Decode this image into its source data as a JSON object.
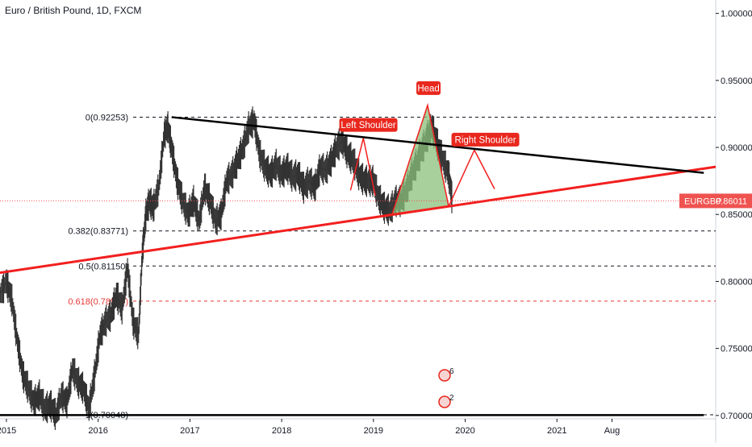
{
  "chart_data": {
    "type": "line",
    "title": "Euro / British Pound, 1D, FXCM",
    "symbol": "EURGBP",
    "last_price": "0.86011",
    "x_ticks": [
      "2015",
      "2016",
      "2017",
      "2018",
      "2019",
      "2020",
      "2021",
      "Aug"
    ],
    "y_ticks": [
      "1.00000",
      "0.95000",
      "0.90000",
      "0.85000",
      "0.80000",
      "0.75000",
      "0.70000"
    ],
    "ylim": [
      0.6975,
      1.01
    ],
    "xlim": [
      2014.93,
      2022.73
    ],
    "grid": false,
    "series": [
      {
        "values_x": [
          2014.93,
          2015.0,
          2015.06,
          2015.12,
          2015.18,
          2015.24,
          2015.3,
          2015.36,
          2015.42,
          2015.48,
          2015.54,
          2015.6,
          2015.66,
          2015.72,
          2015.78,
          2015.84,
          2015.9,
          2015.96,
          2016.02,
          2016.08,
          2016.14,
          2016.2,
          2016.26,
          2016.32,
          2016.38,
          2016.44,
          2016.48,
          2016.52,
          2016.56,
          2016.6,
          2016.66,
          2016.72,
          2016.76,
          2016.8,
          2016.86,
          2016.92,
          2016.98,
          2017.04,
          2017.1,
          2017.16,
          2017.22,
          2017.28,
          2017.34,
          2017.4,
          2017.46,
          2017.52,
          2017.58,
          2017.64,
          2017.7,
          2017.76,
          2017.82,
          2017.88,
          2017.94,
          2018.0,
          2018.06,
          2018.12,
          2018.18,
          2018.24,
          2018.3,
          2018.36,
          2018.42,
          2018.48,
          2018.54,
          2018.6,
          2018.66,
          2018.72,
          2018.78,
          2018.84,
          2018.9,
          2018.96,
          2019.0,
          2019.06,
          2019.12,
          2019.18,
          2019.24,
          2019.3,
          2019.36,
          2019.42,
          2019.48,
          2019.54,
          2019.6,
          2019.64,
          2019.7,
          2019.76,
          2019.82,
          2019.86
        ],
        "values_y": [
          0.79,
          0.8,
          0.786,
          0.755,
          0.73,
          0.72,
          0.71,
          0.715,
          0.705,
          0.708,
          0.7,
          0.715,
          0.71,
          0.735,
          0.725,
          0.72,
          0.705,
          0.73,
          0.76,
          0.77,
          0.775,
          0.79,
          0.78,
          0.81,
          0.77,
          0.76,
          0.82,
          0.85,
          0.86,
          0.855,
          0.87,
          0.91,
          0.915,
          0.9,
          0.875,
          0.86,
          0.85,
          0.86,
          0.845,
          0.87,
          0.86,
          0.845,
          0.85,
          0.875,
          0.88,
          0.89,
          0.9,
          0.915,
          0.92,
          0.895,
          0.885,
          0.88,
          0.887,
          0.88,
          0.885,
          0.878,
          0.88,
          0.87,
          0.875,
          0.87,
          0.885,
          0.883,
          0.89,
          0.9,
          0.905,
          0.895,
          0.89,
          0.88,
          0.875,
          0.875,
          0.875,
          0.862,
          0.855,
          0.853,
          0.86,
          0.86,
          0.868,
          0.88,
          0.89,
          0.9,
          0.91,
          0.915,
          0.902,
          0.89,
          0.88,
          0.86
        ]
      }
    ],
    "fib_levels": [
      {
        "label": "0(0.92253)",
        "value": 0.92253,
        "color": "#131722"
      },
      {
        "label": "0.382(0.83771)",
        "value": 0.83771,
        "color": "#131722"
      },
      {
        "label": "0.5(0.81150)",
        "value": 0.8115,
        "color": "#131722"
      },
      {
        "label": "0.618(0.78530)",
        "value": 0.7853,
        "color": "#e53935"
      },
      {
        "label": "1(0.70048)",
        "value": 0.70048,
        "color": "#131722"
      }
    ],
    "annotations": [
      "Left Shoulder",
      "Head",
      "Right Shoulder"
    ],
    "badges": [
      "6",
      "2"
    ],
    "colors": {
      "candle": "#333333",
      "trend_red": "#f21f1f",
      "trend_black": "#000000",
      "head_fill": "#8bc07b",
      "label_bg": "#e8271d",
      "price_tag": "#ef5350"
    }
  }
}
